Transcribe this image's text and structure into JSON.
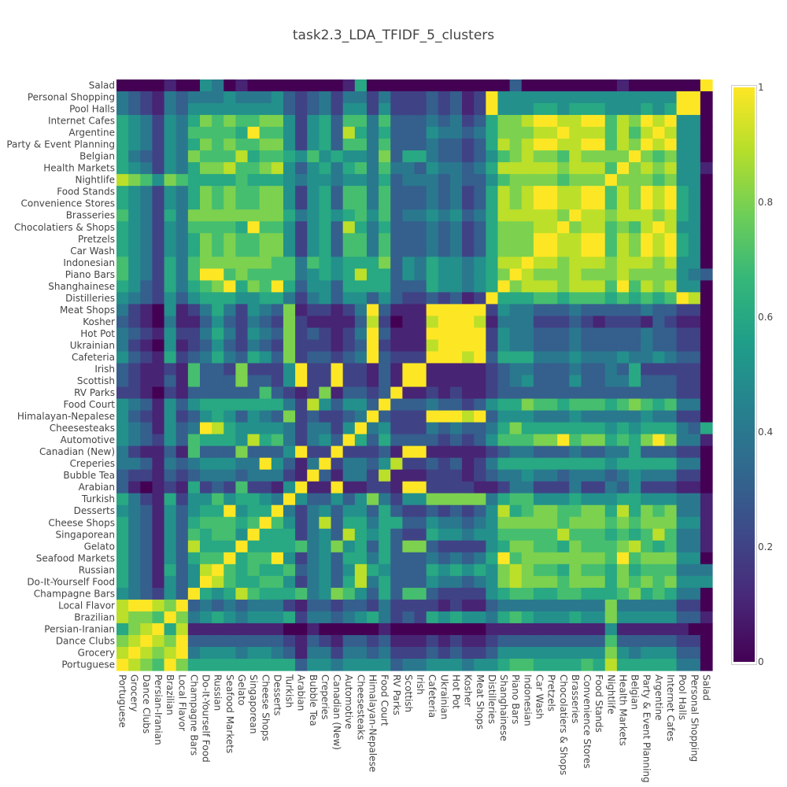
{
  "chart_data": {
    "type": "heatmap",
    "title": "task2.3_LDA_TFIDF_5_clusters",
    "xlabel": "",
    "ylabel": "",
    "x_categories": [
      "Portuguese",
      "Grocery",
      "Dance Clubs",
      "Persian-Iranian",
      "Brazilian",
      "Local Flavor",
      "Champagne Bars",
      "Do-It-Yourself Food",
      "Russian",
      "Seafood Markets",
      "Gelato",
      "Singaporean",
      "Cheese Shops",
      "Desserts",
      "Turkish",
      "Arabian",
      "Bubble Tea",
      "Creperies",
      "Canadian (New)",
      "Automotive",
      "Cheesesteaks",
      "Himalayan-Nepalese",
      "Food Court",
      "RV Parks",
      "Scottish",
      "Irish",
      "Cafeteria",
      "Ukrainian",
      "Hot Pot",
      "Kosher",
      "Meat Shops",
      "Distilleries",
      "Shanghainese",
      "Piano Bars",
      "Indonesian",
      "Car Wash",
      "Pretzels",
      "Chocolatiers & Shops",
      "Brasseries",
      "Convenience Stores",
      "Food Stands",
      "Nightlife",
      "Health Markets",
      "Belgian",
      "Party & Event Planning",
      "Argentine",
      "Internet Cafes",
      "Pool Halls",
      "Personal Shopping",
      "Salad"
    ],
    "y_categories_top_to_bottom": [
      "Salad",
      "Personal Shopping",
      "Pool Halls",
      "Internet Cafes",
      "Argentine",
      "Party & Event Planning",
      "Belgian",
      "Health Markets",
      "Nightlife",
      "Food Stands",
      "Convenience Stores",
      "Brasseries",
      "Chocolatiers & Shops",
      "Pretzels",
      "Car Wash",
      "Indonesian",
      "Piano Bars",
      "Shanghainese",
      "Distilleries",
      "Meat Shops",
      "Kosher",
      "Hot Pot",
      "Ukrainian",
      "Cafeteria",
      "Irish",
      "Scottish",
      "RV Parks",
      "Food Court",
      "Himalayan-Nepalese",
      "Cheesesteaks",
      "Automotive",
      "Canadian (New)",
      "Creperies",
      "Bubble Tea",
      "Arabian",
      "Turkish",
      "Desserts",
      "Cheese Shops",
      "Singaporean",
      "Gelato",
      "Seafood Markets",
      "Russian",
      "Do-It-Yourself Food",
      "Champagne Bars",
      "Local Flavor",
      "Brazilian",
      "Persian-Iranian",
      "Dance Clubs",
      "Grocery",
      "Portuguese"
    ],
    "z_encoding": "each row string lists one digit per x category; value = hex digit / 10 (a = 1.0)",
    "z_rows_top_to_bottom": [
      "0000100540100000000160000000000003000000001000000a",
      "4321434445444532342442422232312a555555555555555aa0",
      "4321435555555532342552522232312a555665666555656aa0",
      "65425468787788525637747333434236889aa99aa798a9a550",
      "65425477776a7752563964633354434688899a9997979a9550",
      "65425468787788525637747333433236989aa99aa798a9a550",
      "6432548777967765756554836643323578988798888a878550",
      "654254688977895356467474435443469999989997a8989551",
      "98758766667666545545546344434335788887888a88878550",
      "65425468787788525637747333434236989aa99aa798a9a650",
      "65425468787788525637747333434236989aa99aa798a9a650",
      "75426488888888645656757344545346999998a99899989650",
      "65425477776a7752563964633343423688899a8997879a9550",
      "65425468787788525637747333434236888aa99aa798a9a650",
      "65425468787788525637747333434236888aa99aa798a9a650",
      "7542647888888774765666835465545699a998999899989550",
      "7542647aa787777456569663546554568a9888988898888543",
      "653264678a687a635536666333655456a899989997a7989550",
      "5432535666556642453553532232312a666776777676767a90",
      "421051246425438122124a3111aaaaa2544333433333433220",
      "321041135324328211113920119aaa91444222321222132110",
      "432152246425438232124a3111aaaaa2544333433333433220",
      "421051235324328222123a21119aaaa2544333433333433220",
      "532162346436538233234a3222aaa9a3666444544454454330",
      "321121733282225a22a22131aa111112344333433436222220",
      "321131733383325a22a22131aa111112345333533446333220",
      "22102133333373212813323a11212112333333333333333220",
      "5431535666666642953553a333433235668776777678767440",
      "532152356535438232234a3222aaa9a3555444544444544220",
      "5431534a965555424425a45222434334686666666565666436",
      "5432537666596742453a63633332323577788a7886768a8441",
      "421131733383335a22a22231aa111112344333433446333220",
      "443143455544a5314a24435922323124666666666566666440",
      "3221323444344421a314429111222123445443444345444220",
      "310121623272215a11a11221aa222211244222422435222110",
      "64216255756654a53353584255888884677555655566555441",
      "543153566a566a424535536322323235967887788696878441",
      "643153677767a7524936646633544345888887888787888551",
      "64315376775a66624539656322655455777779777676797441",
      "6431539666a666674585636388322225688776877789767441",
      "643153677a677a524536646333434346a788888887a7888550",
      "64316359a76766734535965333656565898776877686777444",
      "6431535a976677524536946333544345898887888687878555",
      "543253a6569766674587536377322225677667766678676440",
      "9aa98a34343444213323324222212113444444444844444220",
      "9887a845654555624434564232656554676555655855555331",
      "689a6911111111001000001000000001111111111511111100",
      "89a98a33333333213213323111212112333333333733333220",
      "9a989a45554554314424434222323223555555555854555330",
      "a987a866666666635545555344555455677666676966666440"
    ],
    "zlim": [
      0,
      1
    ],
    "colorscale": "viridis",
    "colorbar": {
      "ticks": [
        "0",
        "0.2",
        "0.4",
        "0.6",
        "0.8",
        "1"
      ],
      "placement": "right"
    },
    "grid": false
  }
}
